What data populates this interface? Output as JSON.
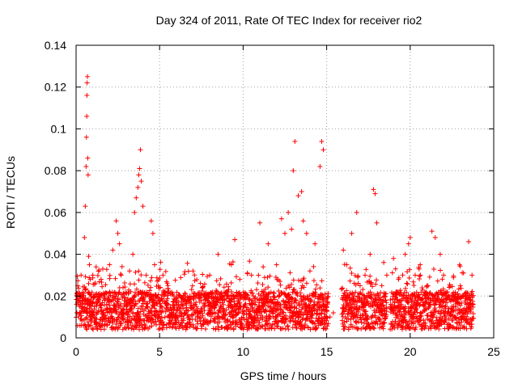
{
  "chart_data": {
    "type": "scatter",
    "title": "Day 324 of 2011, Rate Of TEC Index for receiver rio2",
    "xlabel": "GPS time / hours",
    "ylabel": "ROTI / TECUs",
    "xlim": [
      0,
      25
    ],
    "ylim": [
      0,
      0.14
    ],
    "xticks": [
      0,
      5,
      10,
      15,
      20,
      25
    ],
    "xtick_labels": [
      "0",
      "5",
      "10",
      "15",
      "20",
      "25"
    ],
    "yticks": [
      0,
      0.02,
      0.04,
      0.06,
      0.08,
      0.1,
      0.12,
      0.14
    ],
    "ytick_labels": [
      "0",
      "0.02",
      "0.04",
      "0.06",
      "0.08",
      "0.1",
      "0.12",
      "0.14"
    ],
    "grid": true,
    "marker": "plus",
    "color": "#ff0000",
    "series": [
      {
        "x": [
          0.05,
          0.1,
          0.2,
          0.3,
          0.4,
          0.5,
          0.55,
          0.6,
          0.62,
          0.64,
          0.65,
          0.66,
          0.68,
          0.7,
          0.72,
          0.75,
          0.8,
          0.85,
          0.9,
          1.0,
          1.1,
          1.2,
          1.3,
          1.5,
          1.7,
          2.0,
          2.2,
          2.4,
          2.5,
          2.6,
          2.7,
          2.8,
          3.0,
          3.2,
          3.4,
          3.5,
          3.6,
          3.7,
          3.75,
          3.8,
          3.85,
          3.9,
          4.0,
          4.2,
          4.4,
          4.5,
          4.6,
          4.7,
          5.0,
          5.5,
          6.0,
          6.5,
          7.0,
          7.5,
          8.0,
          8.5,
          9.0,
          9.3,
          9.5,
          9.8,
          10.0,
          10.5,
          11.0,
          11.2,
          11.5,
          12.0,
          12.3,
          12.5,
          12.7,
          12.9,
          13.0,
          13.1,
          13.3,
          13.5,
          13.6,
          13.8,
          14.0,
          14.3,
          14.5,
          14.6,
          14.7,
          14.8,
          15.0,
          15.2,
          15.4,
          16.0,
          16.2,
          16.5,
          16.8,
          17.0,
          17.3,
          17.6,
          17.8,
          17.9,
          18.0,
          18.3,
          18.6,
          19.0,
          19.3,
          19.5,
          19.7,
          19.9,
          20.0,
          20.3,
          20.6,
          21.0,
          21.3,
          21.5,
          21.8,
          22.0,
          22.3,
          22.6,
          23.0,
          23.3,
          23.5,
          23.7
        ],
        "y": [
          0.012,
          0.025,
          0.018,
          0.03,
          0.015,
          0.048,
          0.063,
          0.082,
          0.096,
          0.106,
          0.116,
          0.122,
          0.125,
          0.086,
          0.078,
          0.039,
          0.035,
          0.028,
          0.02,
          0.03,
          0.015,
          0.034,
          0.012,
          0.028,
          0.018,
          0.035,
          0.042,
          0.056,
          0.05,
          0.045,
          0.03,
          0.02,
          0.015,
          0.032,
          0.04,
          0.06,
          0.067,
          0.072,
          0.078,
          0.081,
          0.09,
          0.075,
          0.063,
          0.03,
          0.02,
          0.056,
          0.05,
          0.035,
          0.008,
          0.025,
          0.012,
          0.02,
          0.032,
          0.018,
          0.03,
          0.04,
          0.022,
          0.035,
          0.047,
          0.028,
          0.015,
          0.03,
          0.055,
          0.034,
          0.045,
          0.035,
          0.057,
          0.05,
          0.06,
          0.052,
          0.08,
          0.094,
          0.068,
          0.07,
          0.056,
          0.05,
          0.032,
          0.045,
          0.02,
          0.082,
          0.094,
          0.09,
          0.015,
          0.01,
          0.012,
          0.042,
          0.035,
          0.05,
          0.06,
          0.025,
          0.03,
          0.04,
          0.071,
          0.069,
          0.055,
          0.025,
          0.03,
          0.038,
          0.028,
          0.02,
          0.04,
          0.045,
          0.048,
          0.03,
          0.035,
          0.025,
          0.051,
          0.048,
          0.04,
          0.03,
          0.02,
          0.015,
          0.025,
          0.02,
          0.046,
          0.03
        ]
      }
    ]
  }
}
